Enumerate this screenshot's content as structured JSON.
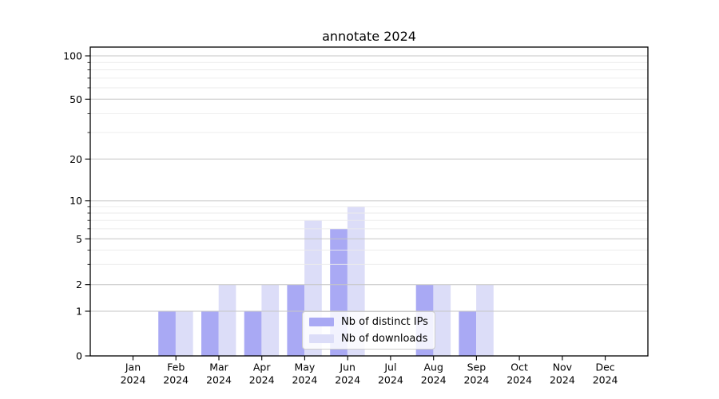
{
  "chart_data": {
    "type": "bar",
    "title": "annotate 2024",
    "categories": [
      "Jan",
      "Feb",
      "Mar",
      "Apr",
      "May",
      "Jun",
      "Jul",
      "Aug",
      "Sep",
      "Oct",
      "Nov",
      "Dec"
    ],
    "year_label": "2024",
    "series": [
      {
        "name": "Nb of distinct IPs",
        "color": "#a9a9f4",
        "values": [
          0,
          1,
          1,
          1,
          2,
          6,
          0,
          2,
          1,
          0,
          0,
          0
        ]
      },
      {
        "name": "Nb of downloads",
        "color": "#dcddf8",
        "values": [
          0,
          1,
          2,
          2,
          7,
          9,
          0,
          2,
          2,
          0,
          0,
          0
        ]
      }
    ],
    "y_axis": {
      "major_ticks": [
        0,
        1,
        2,
        5,
        10,
        20,
        50,
        100
      ],
      "minor_gridlines": [
        3,
        4,
        6,
        7,
        8,
        9,
        30,
        40,
        60,
        70,
        80,
        90
      ],
      "scale": "log above 1, linear 0-1",
      "top_value": 115
    },
    "x_axis": {
      "tick_style": "month over year, two lines"
    },
    "legend": {
      "position": "lower center",
      "entries": [
        "Nb of distinct IPs",
        "Nb of downloads"
      ]
    },
    "grid": "horizontal major and minor, drawn above bars"
  },
  "colors": {
    "background": "#ffffff",
    "bar_ips": "#a9a9f4",
    "bar_downloads": "#dcddf8",
    "major_grid": "#c6c6c6",
    "minor_grid": "#ebebeb",
    "spine": "#000000",
    "text": "#000000",
    "legend_border": "#cccccc"
  }
}
